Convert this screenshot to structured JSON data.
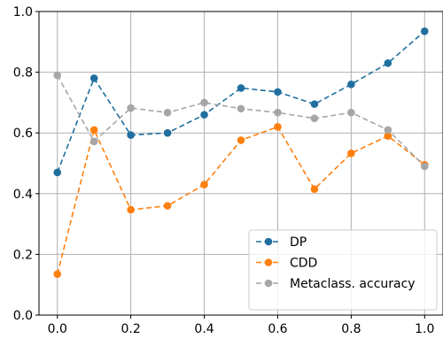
{
  "chart_data": {
    "type": "line",
    "x": [
      0.0,
      0.1,
      0.2,
      0.3,
      0.4,
      0.5,
      0.6,
      0.7,
      0.8,
      0.9,
      1.0
    ],
    "series": [
      {
        "name": "DP",
        "color": "#1f6f9f",
        "values": [
          0.47,
          0.78,
          0.593,
          0.6,
          0.66,
          0.748,
          0.735,
          0.695,
          0.76,
          0.83,
          0.935
        ]
      },
      {
        "name": "CDD",
        "color": "#ff7f0e",
        "values": [
          0.135,
          0.61,
          0.347,
          0.36,
          0.43,
          0.576,
          0.62,
          0.415,
          0.533,
          0.59,
          0.495
        ]
      },
      {
        "name": "Metaclass. accuracy",
        "color": "#a6a6a6",
        "values": [
          0.79,
          0.572,
          0.682,
          0.667,
          0.7,
          0.68,
          0.667,
          0.648,
          0.667,
          0.61,
          0.49
        ]
      }
    ],
    "xlim": [
      -0.05,
      1.05
    ],
    "ylim": [
      0.0,
      1.0
    ],
    "xticks": [
      "0.0",
      "0.2",
      "0.4",
      "0.6",
      "0.8",
      "1.0"
    ],
    "yticks": [
      "0.0",
      "0.2",
      "0.4",
      "0.6",
      "0.8",
      "1.0"
    ],
    "grid": true,
    "line_style": "dashed",
    "marker": "circle",
    "legend_position": "lower-right"
  }
}
